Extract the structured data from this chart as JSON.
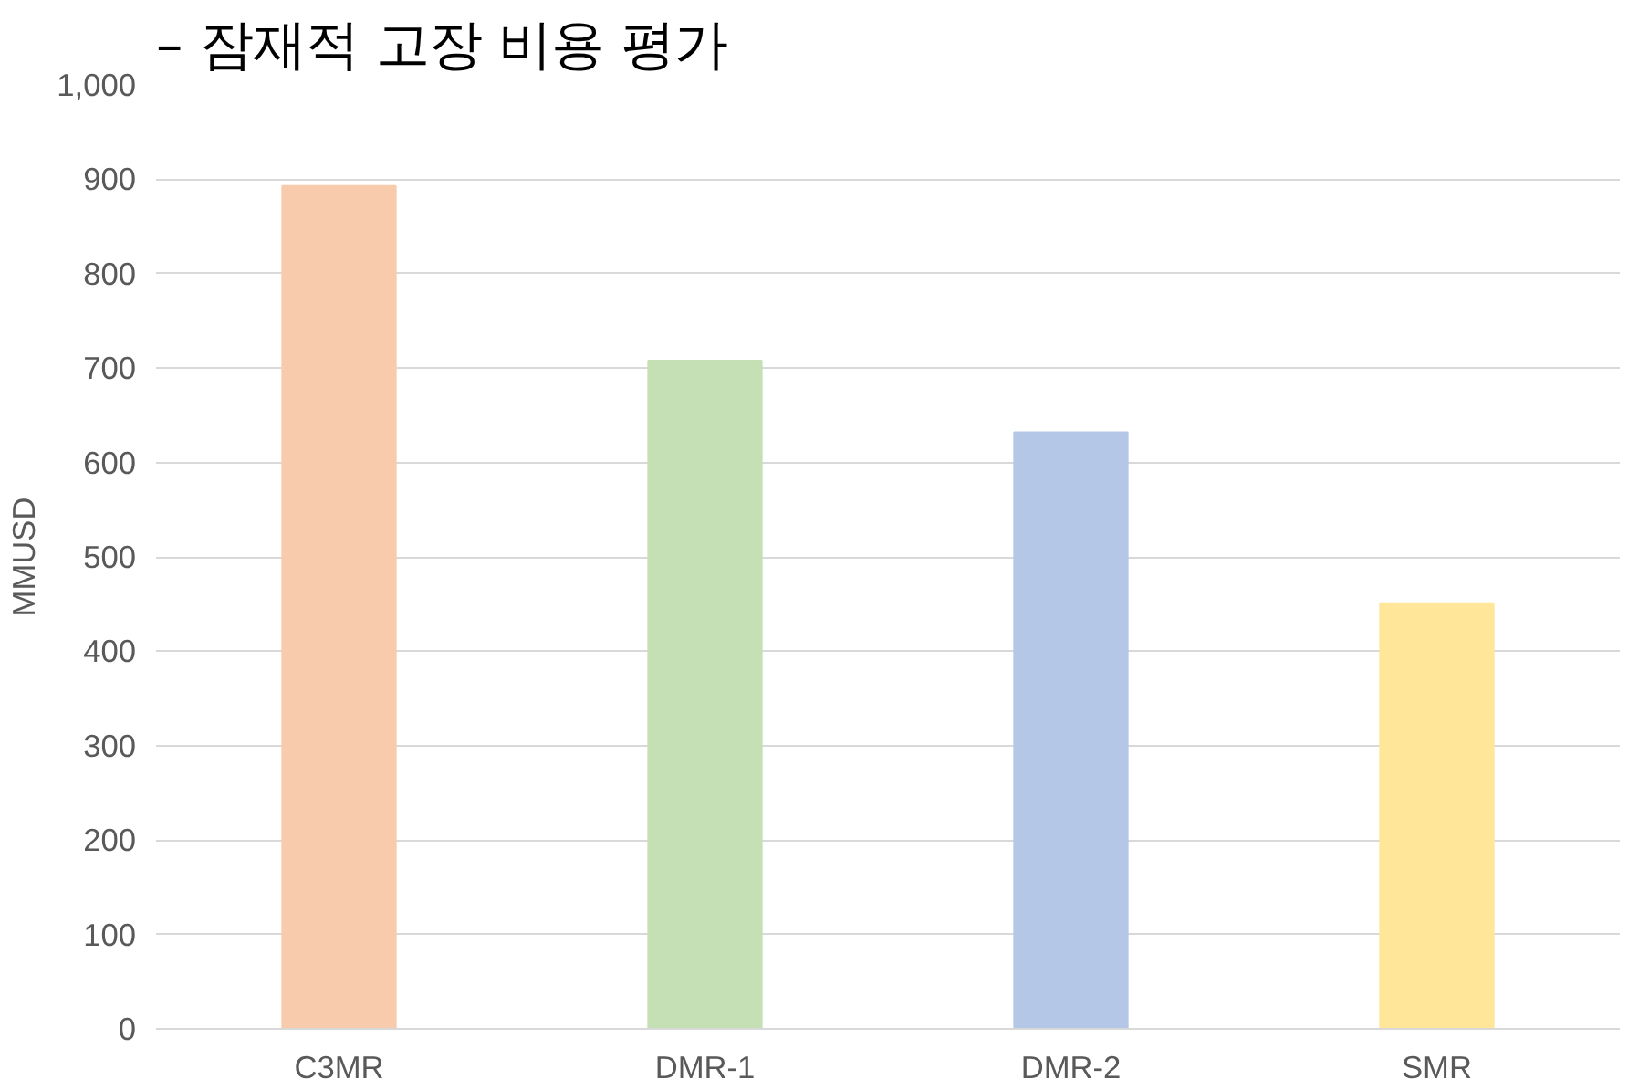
{
  "chart_data": {
    "type": "bar",
    "title": "– 잠재적 고장 비용 평가",
    "ylabel": "MMUSD",
    "categories": [
      "C3MR",
      "DMR-1",
      "DMR-2",
      "SMR"
    ],
    "values": [
      893,
      708,
      632,
      451
    ],
    "colors": [
      "#f8cbad",
      "#c5e0b4",
      "#b4c7e7",
      "#ffe699"
    ],
    "ylim": [
      0,
      1000
    ],
    "yticks": [
      0,
      100,
      200,
      300,
      400,
      500,
      600,
      700,
      800,
      900,
      {
        "value": 1000,
        "label": "1,000"
      }
    ],
    "grid": "y"
  }
}
